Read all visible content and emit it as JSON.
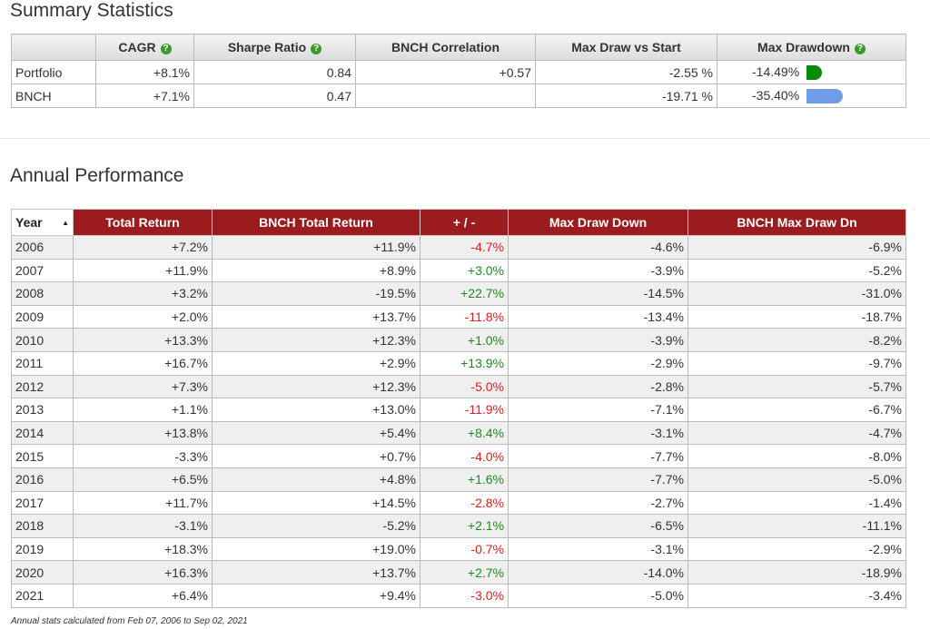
{
  "summary": {
    "title": "Summary Statistics",
    "headers": [
      "CAGR",
      "Sharpe Ratio",
      "BNCH Correlation",
      "Max Draw vs Start",
      "Max Drawdown"
    ],
    "help_icons": [
      true,
      true,
      false,
      false,
      true
    ],
    "rows": [
      [
        "Portfolio",
        "+8.1%",
        "0.84",
        "+0.57",
        "-2.55 %",
        "-14.49%"
      ],
      [
        "BNCH",
        "+7.1%",
        "0.47",
        null,
        "-19.71 %",
        "-35.40%"
      ]
    ],
    "bar_colors": [
      "#0a8a0a",
      "#6f9de8"
    ]
  },
  "annual": {
    "title": "Annual Performance",
    "headers": [
      "Year",
      "Total Return",
      "BNCH Total Return",
      "+ / -",
      "Max Draw Down",
      "BNCH Max Draw Dn"
    ],
    "rows": [
      [
        "2006",
        "+7.2%",
        "+11.9%",
        "-4.7%",
        "-4.6%",
        "-6.9%"
      ],
      [
        "2007",
        "+11.9%",
        "+8.9%",
        "+3.0%",
        "-3.9%",
        "-5.2%"
      ],
      [
        "2008",
        "+3.2%",
        "-19.5%",
        "+22.7%",
        "-14.5%",
        "-31.0%"
      ],
      [
        "2009",
        "+2.0%",
        "+13.7%",
        "-11.8%",
        "-13.4%",
        "-18.7%"
      ],
      [
        "2010",
        "+13.3%",
        "+12.3%",
        "+1.0%",
        "-3.9%",
        "-8.2%"
      ],
      [
        "2011",
        "+16.7%",
        "+2.9%",
        "+13.9%",
        "-2.9%",
        "-9.7%"
      ],
      [
        "2012",
        "+7.3%",
        "+12.3%",
        "-5.0%",
        "-2.8%",
        "-5.7%"
      ],
      [
        "2013",
        "+1.1%",
        "+13.0%",
        "-11.9%",
        "-7.1%",
        "-6.7%"
      ],
      [
        "2014",
        "+13.8%",
        "+5.4%",
        "+8.4%",
        "-3.1%",
        "-4.7%"
      ],
      [
        "2015",
        "-3.3%",
        "+0.7%",
        "-4.0%",
        "-7.7%",
        "-8.0%"
      ],
      [
        "2016",
        "+6.5%",
        "+4.8%",
        "+1.6%",
        "-7.7%",
        "-5.0%"
      ],
      [
        "2017",
        "+11.7%",
        "+14.5%",
        "-2.8%",
        "-2.7%",
        "-1.4%"
      ],
      [
        "2018",
        "-3.1%",
        "-5.2%",
        "+2.1%",
        "-6.5%",
        "-11.1%"
      ],
      [
        "2019",
        "+18.3%",
        "+19.0%",
        "-0.7%",
        "-3.1%",
        "-2.9%"
      ],
      [
        "2020",
        "+16.3%",
        "+13.7%",
        "+2.7%",
        "-14.0%",
        "-18.9%"
      ],
      [
        "2021",
        "+6.4%",
        "+9.4%",
        "-3.0%",
        "-5.0%",
        "-3.4%"
      ]
    ],
    "footnote": "Annual stats calculated from Feb 07, 2006 to Sep 02, 2021"
  }
}
